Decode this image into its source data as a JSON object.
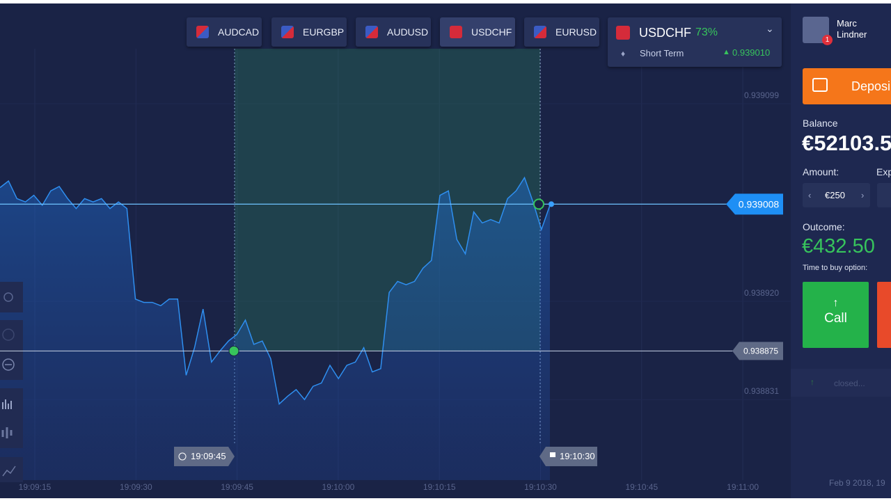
{
  "tabs": [
    "AUDCAD",
    "EURGBP",
    "AUDUSD",
    "USDCHF",
    "EURUSD"
  ],
  "asset": {
    "name": "USDCHF",
    "payout": "73%",
    "mode": "Short Term",
    "price": "0.939010"
  },
  "user": {
    "first_name": "Marc",
    "last_name": "Lindner",
    "badge": "1"
  },
  "sidebar": {
    "deposit": "Deposi",
    "balance_label": "Balance",
    "balance": "€52103.5",
    "amount_label": "Amount:",
    "expiry_label": "Exp",
    "amount": "€250",
    "outcome_label": "Outcome:",
    "outcome": "€432.50",
    "time_label": "Time to buy option:",
    "call": "Call",
    "closed": "closed...",
    "date": "Feb 9 2018, 19"
  },
  "chart_data": {
    "type": "line",
    "series": [
      {
        "name": "USDCHF",
        "color": "#2f8ff0",
        "values": [
          0.939023,
          0.939029,
          0.939013,
          0.93901,
          0.939016,
          0.939007,
          0.93902,
          0.939024,
          0.939013,
          0.939004,
          0.939013,
          0.93901,
          0.939013,
          0.939004,
          0.93901,
          0.939004,
          0.938922,
          0.938919,
          0.938919,
          0.938916,
          0.938922,
          0.938922,
          0.938853,
          0.938878,
          0.938913,
          0.938865,
          0.938875,
          0.938884,
          0.93889,
          0.938903,
          0.938881,
          0.938884,
          0.938868,
          0.938827,
          0.938834,
          0.93884,
          0.938831,
          0.938843,
          0.938846,
          0.938862,
          0.93885,
          0.938862,
          0.938865,
          0.938878,
          0.938856,
          0.938859,
          0.938928,
          0.938938,
          0.938935,
          0.938938,
          0.93895,
          0.938957,
          0.939016,
          0.93902,
          0.938976,
          0.938963,
          0.939001,
          0.938991,
          0.938994,
          0.938991,
          0.939013,
          0.93902,
          0.939032,
          0.93901,
          0.938985,
          0.939007
        ]
      }
    ],
    "yticks": [
      0.939099,
      {
        "value": 0.93892,
        "label": "0.938920"
      },
      0.938831
    ],
    "xticks": [
      "19:09:15",
      "19:09:30",
      "19:09:45",
      "19:10:00",
      "19:10:15",
      "19:10:30",
      "19:10:45",
      "19:11:00"
    ],
    "current_price": 0.939008,
    "entry_price": 0.938875,
    "entry_time": "19:09:45",
    "expiry_time": "19:10:30"
  }
}
